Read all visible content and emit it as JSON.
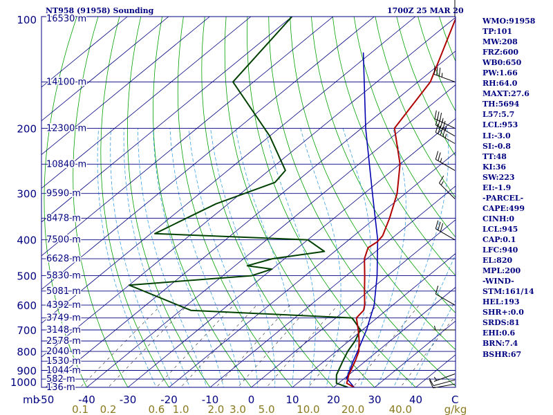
{
  "header": {
    "station": "NT958 (91958) Sounding",
    "time": "1700Z 25 MAR 20"
  },
  "parameters": [
    "WMO:91958",
    "TP:101",
    "MW:208",
    "FRZ:600",
    "WB0:650",
    "PW:1.66",
    "RH:64.0",
    "MAXT:27.6",
    "TH:5694",
    "L57:5.7",
    "LCL:953",
    "LI:-3.0",
    "SI:-0.8",
    "TT:48",
    "KI:36",
    "SW:223",
    "EI:-1.9",
    "-PARCEL-",
    "CAPE:499",
    "CINH:0",
    "LCL:945",
    "CAP:0.1",
    "LFC:940",
    "EL:820",
    "MPL:200",
    "-WIND-",
    "STM:161/14",
    "HEL:193",
    "SHR+:0.0",
    "SRDS:81",
    "EHI:0.6",
    "BRN:7.4",
    "BSHR:67"
  ],
  "colors": {
    "frame": "#000080",
    "isobar": "#000080",
    "isotherm": "#000080",
    "dry_adiabat": "#00a000",
    "moist_adiabat": "#3aa0e0",
    "mixing_ratio": "#444444",
    "temperature": "#b00000",
    "dewpoint": "#004000",
    "parcel": "#0000b0",
    "wind": "#000000"
  },
  "chart_data": {
    "type": "line",
    "subtype": "skew-T log-P sounding",
    "ylabel": "mb",
    "xlabel": "C",
    "mr_unit": "g/kg",
    "p_range": [
      1000,
      100
    ],
    "t_range_at_bottom": [
      -50,
      50
    ],
    "pressure_ticks": [
      100,
      200,
      300,
      400,
      500,
      600,
      700,
      800,
      900,
      1000
    ],
    "temp_ticks": [
      -50,
      -40,
      -30,
      -20,
      -10,
      0,
      10,
      20,
      30,
      40
    ],
    "mixing_ratio_ticks": [
      {
        "label": "0.1",
        "value": 0.1
      },
      {
        "label": "0.2",
        "value": 0.2
      },
      {
        "label": "0.6",
        "value": 0.6
      },
      {
        "label": "1.0",
        "value": 1.0
      },
      {
        "label": "2.0",
        "value": 2.0
      },
      {
        "label": "3.0",
        "value": 3.0
      },
      {
        "label": "5.0",
        "value": 5.0
      },
      {
        "label": "10.0",
        "value": 10.0
      },
      {
        "label": "20.0",
        "value": 20.0
      },
      {
        "label": "40.0",
        "value": 40.0
      }
    ],
    "height_levels": [
      {
        "p": 100,
        "label": "16530 m"
      },
      {
        "p": 150,
        "label": "14100 m"
      },
      {
        "p": 200,
        "label": "12300 m"
      },
      {
        "p": 250,
        "label": "10840 m"
      },
      {
        "p": 300,
        "label": "9590 m"
      },
      {
        "p": 350,
        "label": "8478 m"
      },
      {
        "p": 400,
        "label": "7500 m"
      },
      {
        "p": 450,
        "label": "6628 m"
      },
      {
        "p": 500,
        "label": "5830 m"
      },
      {
        "p": 550,
        "label": "5081 m"
      },
      {
        "p": 600,
        "label": "4392 m"
      },
      {
        "p": 650,
        "label": "3749 m"
      },
      {
        "p": 700,
        "label": "3148 m"
      },
      {
        "p": 750,
        "label": "2578 m"
      },
      {
        "p": 800,
        "label": "2040 m"
      },
      {
        "p": 850,
        "label": "1530 m"
      },
      {
        "p": 900,
        "label": "1044 m"
      },
      {
        "p": 950,
        "label": "582 m"
      },
      {
        "p": 1000,
        "label": "136 m"
      }
    ],
    "temperature": [
      {
        "p": 1000,
        "t": 25.0
      },
      {
        "p": 975,
        "t": 22.0
      },
      {
        "p": 925,
        "t": 20.0
      },
      {
        "p": 850,
        "t": 17.5
      },
      {
        "p": 800,
        "t": 15.5
      },
      {
        "p": 750,
        "t": 12.5
      },
      {
        "p": 700,
        "t": 9.0
      },
      {
        "p": 650,
        "t": 5.0
      },
      {
        "p": 620,
        "t": 4.5
      },
      {
        "p": 600,
        "t": 3.2
      },
      {
        "p": 550,
        "t": -1.0
      },
      {
        "p": 500,
        "t": -5.5
      },
      {
        "p": 450,
        "t": -10.6
      },
      {
        "p": 420,
        "t": -13.0
      },
      {
        "p": 405,
        "t": -12.5
      },
      {
        "p": 390,
        "t": -13.0
      },
      {
        "p": 350,
        "t": -16.5
      },
      {
        "p": 300,
        "t": -22.0
      },
      {
        "p": 250,
        "t": -30.0
      },
      {
        "p": 200,
        "t": -42.0
      },
      {
        "p": 150,
        "t": -47.0
      },
      {
        "p": 100,
        "t": -60.0
      }
    ],
    "dewpoint": [
      {
        "p": 1000,
        "t": 23.5
      },
      {
        "p": 975,
        "t": 19.5
      },
      {
        "p": 925,
        "t": 17.0
      },
      {
        "p": 850,
        "t": 14.5
      },
      {
        "p": 800,
        "t": 12.8
      },
      {
        "p": 750,
        "t": 11.5
      },
      {
        "p": 700,
        "t": 9.5
      },
      {
        "p": 650,
        "t": 4.0
      },
      {
        "p": 620,
        "t": -37.5
      },
      {
        "p": 530,
        "t": -60.0
      },
      {
        "p": 500,
        "t": -33.0
      },
      {
        "p": 480,
        "t": -30.0
      },
      {
        "p": 470,
        "t": -37.0
      },
      {
        "p": 450,
        "t": -33.0
      },
      {
        "p": 430,
        "t": -22.5
      },
      {
        "p": 400,
        "t": -30.0
      },
      {
        "p": 385,
        "t": -69.0
      },
      {
        "p": 320,
        "t": -63.0
      },
      {
        "p": 280,
        "t": -55.0
      },
      {
        "p": 260,
        "t": -56.0
      },
      {
        "p": 210,
        "t": -70.0
      },
      {
        "p": 150,
        "t": -95.0
      },
      {
        "p": 100,
        "t": -100.0
      }
    ],
    "parcel": [
      {
        "p": 1000,
        "t": 25.0
      },
      {
        "p": 945,
        "t": 20.5
      },
      {
        "p": 850,
        "t": 17.0
      },
      {
        "p": 800,
        "t": 15.2
      },
      {
        "p": 700,
        "t": 11.0
      },
      {
        "p": 600,
        "t": 5.5
      },
      {
        "p": 500,
        "t": -2.5
      },
      {
        "p": 400,
        "t": -13.0
      },
      {
        "p": 300,
        "t": -28.0
      },
      {
        "p": 200,
        "t": -49.0
      },
      {
        "p": 125,
        "t": -72.0
      }
    ],
    "wind_barbs": [
      {
        "p": 980,
        "dir": 260,
        "spd": 10
      },
      {
        "p": 955,
        "dir": 255,
        "spd": 10
      },
      {
        "p": 920,
        "dir": 250,
        "spd": 5
      },
      {
        "p": 700,
        "dir": 270,
        "spd": 5
      },
      {
        "p": 600,
        "dir": 300,
        "spd": 10
      },
      {
        "p": 400,
        "dir": 300,
        "spd": 30
      },
      {
        "p": 310,
        "dir": 315,
        "spd": 15
      },
      {
        "p": 260,
        "dir": 300,
        "spd": 25
      },
      {
        "p": 220,
        "dir": 300,
        "spd": 45
      },
      {
        "p": 210,
        "dir": 300,
        "spd": 45
      },
      {
        "p": 200,
        "dir": 295,
        "spd": 35
      },
      {
        "p": 150,
        "dir": 290,
        "spd": 35
      },
      {
        "p": 100,
        "dir": 0,
        "spd": 5
      }
    ]
  }
}
